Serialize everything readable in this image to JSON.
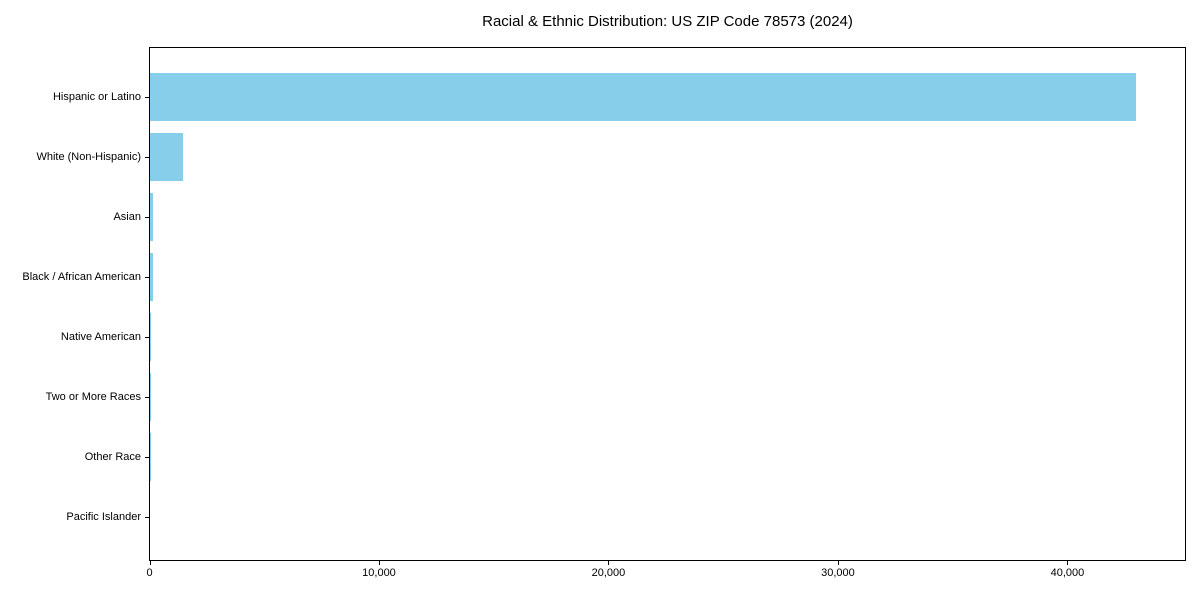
{
  "title": "Racial & Ethnic Distribution: US ZIP Code 78573 (2024)",
  "chart_data": {
    "type": "bar",
    "orientation": "horizontal",
    "title": "Racial & Ethnic Distribution: US ZIP Code 78573 (2024)",
    "xlabel": "",
    "ylabel": "",
    "categories": [
      "Hispanic or Latino",
      "White (Non-Hispanic)",
      "Asian",
      "Black / African American",
      "Native American",
      "Two or More Races",
      "Other Race",
      "Pacific Islander"
    ],
    "values": [
      42950,
      1450,
      150,
      120,
      45,
      20,
      10,
      0
    ],
    "x_ticks": [
      0,
      10000,
      20000,
      30000,
      40000
    ],
    "x_tick_labels": [
      "0",
      "10,000",
      "20,000",
      "30,000",
      "40,000"
    ],
    "xlim": [
      0,
      45100
    ],
    "bar_color": "#87CEEB",
    "axis_color": "#000000",
    "grid": false,
    "legend": false
  }
}
